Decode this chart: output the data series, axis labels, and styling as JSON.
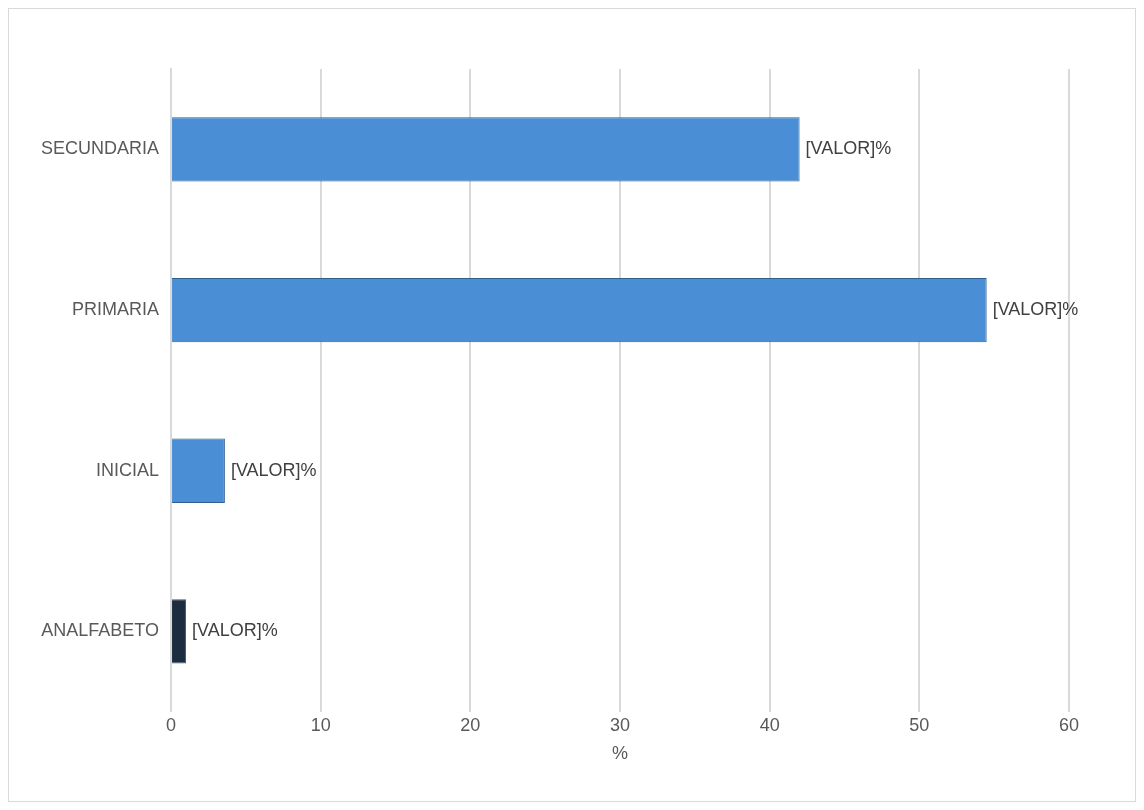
{
  "chart_data": {
    "type": "bar",
    "orientation": "horizontal",
    "xlabel": "%",
    "categories": [
      "SECUNDARIA",
      "PRIMARIA",
      "INICIAL",
      "ANALFABETO"
    ],
    "values": [
      42,
      54.5,
      3.6,
      1
    ],
    "colors": [
      "#4a8fd6",
      "#4a8fd6",
      "#4a8fd6",
      "#1c2d3f"
    ],
    "value_labels": [
      "[VALOR]%",
      "[VALOR]%",
      "[VALOR]%",
      "[VALOR]%"
    ],
    "xlim": [
      0,
      60
    ],
    "xticks": [
      0,
      10,
      20,
      30,
      40,
      50,
      60
    ],
    "grid": "x",
    "legend": false
  }
}
